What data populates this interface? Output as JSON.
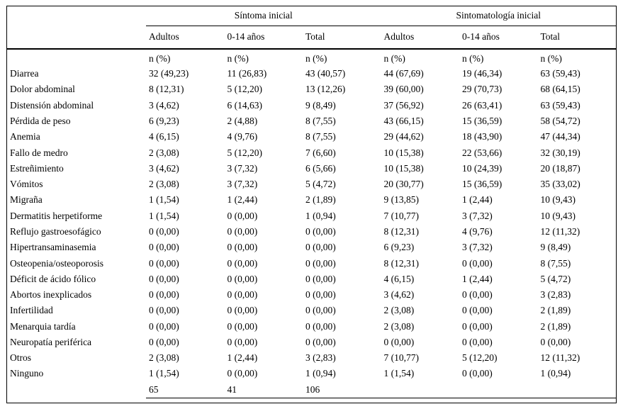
{
  "colors": {
    "background": "#ffffff",
    "text": "#000000",
    "rule": "#000000"
  },
  "table": {
    "group_headers": [
      {
        "label": "Síntoma inicial"
      },
      {
        "label": "Sintomatología inicial"
      }
    ],
    "subheaders": [
      "Adultos",
      "0-14 años",
      "Total",
      "Adultos",
      "0-14 años",
      "Total"
    ],
    "unit_row": [
      "n (%)",
      "n (%)",
      "n (%)",
      "n (%)",
      "n (%)",
      "n (%)"
    ],
    "rows": [
      {
        "label": "Diarrea",
        "values": [
          "32 (49,23)",
          "11 (26,83)",
          "43 (40,57)",
          "44 (67,69)",
          "19 (46,34)",
          "63 (59,43)"
        ]
      },
      {
        "label": "Dolor abdominal",
        "values": [
          "8 (12,31)",
          "5 (12,20)",
          "13 (12,26)",
          "39 (60,00)",
          "29 (70,73)",
          "68 (64,15)"
        ]
      },
      {
        "label": "Distensión abdominal",
        "values": [
          "3 (4,62)",
          "6 (14,63)",
          "9 (8,49)",
          "37 (56,92)",
          "26 (63,41)",
          "63 (59,43)"
        ]
      },
      {
        "label": "Pérdida de peso",
        "values": [
          "6 (9,23)",
          "2 (4,88)",
          "8 (7,55)",
          "43 (66,15)",
          "15 (36,59)",
          "58 (54,72)"
        ]
      },
      {
        "label": "Anemia",
        "values": [
          "4 (6,15)",
          "4 (9,76)",
          "8 (7,55)",
          "29 (44,62)",
          "18 (43,90)",
          "47 (44,34)"
        ]
      },
      {
        "label": "Fallo de medro",
        "values": [
          "2 (3,08)",
          "5 (12,20)",
          "7 (6,60)",
          "10 (15,38)",
          "22 (53,66)",
          "32 (30,19)"
        ]
      },
      {
        "label": "Estreñimiento",
        "values": [
          "3 (4,62)",
          "3 (7,32)",
          "6 (5,66)",
          "10 (15,38)",
          "10 (24,39)",
          "20 (18,87)"
        ]
      },
      {
        "label": "Vómitos",
        "values": [
          "2 (3,08)",
          "3 (7,32)",
          "5 (4,72)",
          "20 (30,77)",
          "15 (36,59)",
          "35 (33,02)"
        ]
      },
      {
        "label": "Migraña",
        "values": [
          "1 (1,54)",
          "1 (2,44)",
          "2 (1,89)",
          "9 (13,85)",
          "1 (2,44)",
          "10 (9,43)"
        ]
      },
      {
        "label": "Dermatitis herpetiforme",
        "values": [
          "1 (1,54)",
          "0 (0,00)",
          "1 (0,94)",
          "7 (10,77)",
          "3 (7,32)",
          "10 (9,43)"
        ]
      },
      {
        "label": "Reflujo gastroesofágico",
        "values": [
          "0 (0,00)",
          "0 (0,00)",
          "0 (0,00)",
          "8 (12,31)",
          "4 (9,76)",
          "12 (11,32)"
        ]
      },
      {
        "label": "Hipertransaminasemia",
        "values": [
          "0 (0,00)",
          "0 (0,00)",
          "0 (0,00)",
          "6 (9,23)",
          "3 (7,32)",
          "9 (8,49)"
        ]
      },
      {
        "label": "Osteopenia/osteoporosis",
        "values": [
          "0 (0,00)",
          "0 (0,00)",
          "0 (0,00)",
          "8 (12,31)",
          "0 (0,00)",
          "8 (7,55)"
        ]
      },
      {
        "label": "Déficit de ácido fólico",
        "values": [
          "0 (0,00)",
          "0 (0,00)",
          "0 (0,00)",
          "4 (6,15)",
          "1 (2,44)",
          "5 (4,72)"
        ]
      },
      {
        "label": "Abortos inexplicados",
        "values": [
          "0 (0,00)",
          "0 (0,00)",
          "0 (0,00)",
          "3 (4,62)",
          "0 (0,00)",
          "3 (2,83)"
        ]
      },
      {
        "label": "Infertilidad",
        "values": [
          "0 (0,00)",
          "0 (0,00)",
          "0 (0,00)",
          "2 (3,08)",
          "0 (0,00)",
          "2 (1,89)"
        ]
      },
      {
        "label": "Menarquia tardía",
        "values": [
          "0 (0,00)",
          "0 (0,00)",
          "0 (0,00)",
          "2 (3,08)",
          "0 (0,00)",
          "2 (1,89)"
        ]
      },
      {
        "label": "Neuropatía periférica",
        "values": [
          "0 (0,00)",
          "0 (0,00)",
          "0 (0,00)",
          "0 (0,00)",
          "0 (0,00)",
          "0 (0,00)"
        ]
      },
      {
        "label": "Otros",
        "values": [
          "2 (3,08)",
          "1 (2,44)",
          "3 (2,83)",
          "7 (10,77)",
          "5 (12,20)",
          "12 (11,32)"
        ]
      },
      {
        "label": "Ninguno",
        "values": [
          "1 (1,54)",
          "0 (0,00)",
          "1 (0,94)",
          "1 (1,54)",
          "0 (0,00)",
          "1 (0,94)"
        ]
      }
    ],
    "totals_row": {
      "label": "",
      "values": [
        "65",
        "41",
        "106",
        "",
        "",
        ""
      ]
    }
  }
}
